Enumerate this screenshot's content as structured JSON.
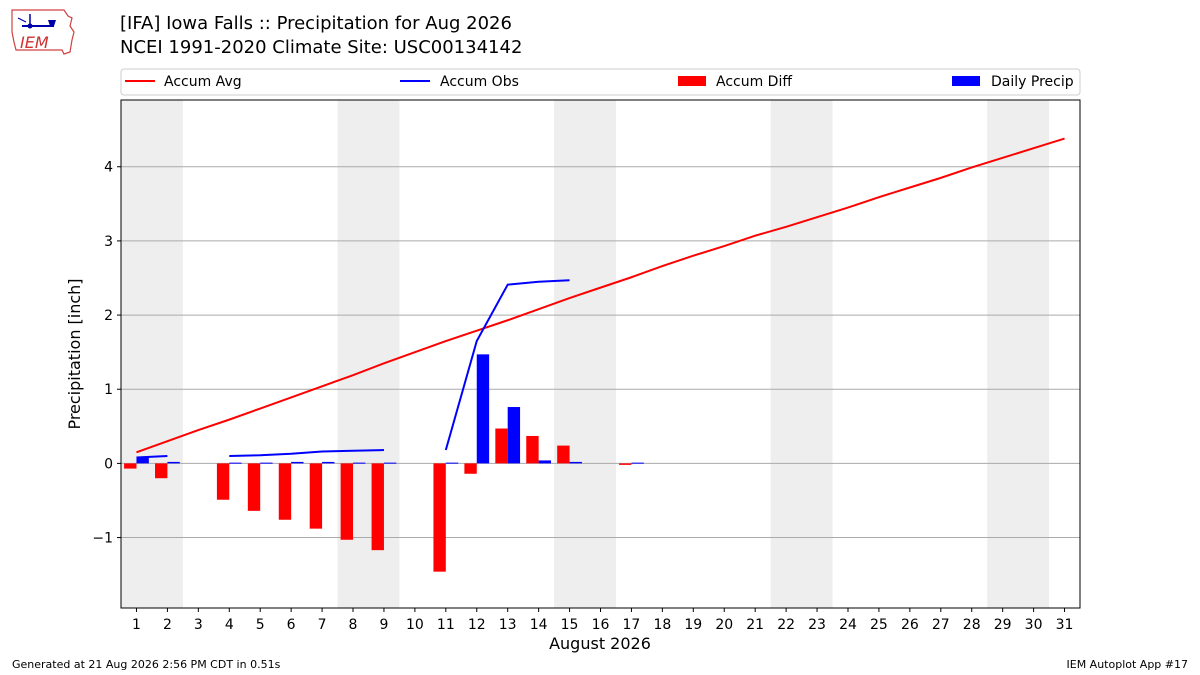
{
  "header": {
    "logo_text": "IEM",
    "title_line1": "[IFA] Iowa Falls :: Precipitation for Aug 2026",
    "title_line2": "NCEI 1991-2020 Climate Site: USC00134142"
  },
  "footer": {
    "generated": "Generated at 21 Aug 2026 2:56 PM CDT in 0.51s",
    "app": "IEM Autoplot App #17"
  },
  "colors": {
    "accum_avg": "#ff0000",
    "accum_obs": "#0000ff",
    "accum_diff": "#ff0000",
    "daily_precip": "#0000ff",
    "weekend_shade": "#eeeeee",
    "grid": "#aaaaaa"
  },
  "chart_data": {
    "type": "bar",
    "xlabel": "August 2026",
    "ylabel": "Precipitation [inch]",
    "xlim": [
      0.5,
      31.5
    ],
    "ylim": [
      -1.95,
      4.9
    ],
    "yticks": [
      -1,
      0,
      1,
      2,
      3,
      4
    ],
    "ytick_labels": [
      "−1",
      "0",
      "1",
      "2",
      "3",
      "4"
    ],
    "days": [
      1,
      2,
      3,
      4,
      5,
      6,
      7,
      8,
      9,
      10,
      11,
      12,
      13,
      14,
      15,
      16,
      17,
      18,
      19,
      20,
      21,
      22,
      23,
      24,
      25,
      26,
      27,
      28,
      29,
      30,
      31
    ],
    "weekend_bands": [
      [
        1,
        2
      ],
      [
        8,
        9
      ],
      [
        15,
        16
      ],
      [
        22,
        23
      ],
      [
        29,
        30
      ]
    ],
    "legend": {
      "placement": "top",
      "items": [
        "Accum Avg",
        "Accum Obs",
        "Accum Diff",
        "Daily Precip"
      ]
    },
    "series": [
      {
        "name": "Accum Avg",
        "kind": "line",
        "x": [
          1,
          2,
          3,
          4,
          5,
          6,
          7,
          8,
          9,
          10,
          11,
          12,
          13,
          14,
          15,
          16,
          17,
          18,
          19,
          20,
          21,
          22,
          23,
          24,
          25,
          26,
          27,
          28,
          29,
          30,
          31
        ],
        "values": [
          0.15,
          0.3,
          0.45,
          0.59,
          0.74,
          0.89,
          1.04,
          1.19,
          1.35,
          1.5,
          1.65,
          1.79,
          1.93,
          2.08,
          2.23,
          2.37,
          2.51,
          2.66,
          2.8,
          2.93,
          3.07,
          3.19,
          3.32,
          3.45,
          3.59,
          3.72,
          3.85,
          3.99,
          4.12,
          4.25,
          4.38
        ]
      },
      {
        "name": "Accum Obs",
        "kind": "line",
        "segments": [
          {
            "x": [
              1,
              2
            ],
            "values": [
              0.08,
              0.1
            ]
          },
          {
            "x": [
              4,
              5,
              6,
              7,
              8,
              9
            ],
            "values": [
              0.1,
              0.11,
              0.13,
              0.16,
              0.17,
              0.18
            ]
          },
          {
            "x": [
              11,
              12,
              13,
              14,
              15
            ],
            "values": [
              0.18,
              1.65,
              2.41,
              2.45,
              2.47
            ]
          }
        ]
      },
      {
        "name": "Accum Diff",
        "kind": "bar",
        "x": [
          1,
          2,
          4,
          5,
          6,
          7,
          8,
          9,
          11,
          12,
          13,
          14,
          15,
          17
        ],
        "values": [
          -0.07,
          -0.2,
          -0.49,
          -0.64,
          -0.76,
          -0.88,
          -1.03,
          -1.17,
          -1.46,
          -0.14,
          0.47,
          0.37,
          0.24,
          -0.02
        ]
      },
      {
        "name": "Daily Precip",
        "kind": "bar",
        "x": [
          1,
          2,
          4,
          5,
          6,
          7,
          8,
          9,
          11,
          12,
          13,
          14,
          15,
          17
        ],
        "values": [
          0.08,
          0.02,
          0.01,
          0.01,
          0.02,
          0.02,
          0.01,
          0.01,
          0.01,
          1.47,
          0.76,
          0.04,
          0.02,
          0.01
        ]
      }
    ]
  }
}
